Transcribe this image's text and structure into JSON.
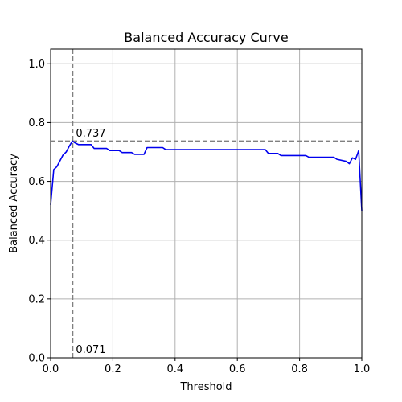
{
  "chart_data": {
    "type": "line",
    "title": "Balanced Accuracy Curve",
    "xlabel": "Threshold",
    "ylabel": "Balanced Accuracy",
    "xlim": [
      0.0,
      1.0
    ],
    "ylim": [
      0.0,
      1.05
    ],
    "grid": true,
    "x_ticks": [
      0.0,
      0.2,
      0.4,
      0.6,
      0.8,
      1.0
    ],
    "x_tick_labels": [
      "0.0",
      "0.2",
      "0.4",
      "0.6",
      "0.8",
      "1.0"
    ],
    "y_ticks": [
      0.0,
      0.2,
      0.4,
      0.6,
      0.8,
      1.0
    ],
    "y_tick_labels": [
      "0.0",
      "0.2",
      "0.4",
      "0.6",
      "0.8",
      "1.0"
    ],
    "series": [
      {
        "color": "#0000ee",
        "x": [
          0.0,
          0.01,
          0.02,
          0.03,
          0.04,
          0.05,
          0.06,
          0.07,
          0.08,
          0.09,
          0.1,
          0.11,
          0.12,
          0.13,
          0.14,
          0.16,
          0.18,
          0.19,
          0.22,
          0.23,
          0.26,
          0.27,
          0.3,
          0.31,
          0.36,
          0.37,
          0.69,
          0.7,
          0.73,
          0.74,
          0.82,
          0.83,
          0.91,
          0.92,
          0.95,
          0.96,
          0.97,
          0.98,
          0.99,
          1.0
        ],
        "y": [
          0.52,
          0.64,
          0.65,
          0.67,
          0.69,
          0.7,
          0.72,
          0.737,
          0.73,
          0.725,
          0.725,
          0.725,
          0.725,
          0.725,
          0.712,
          0.712,
          0.712,
          0.705,
          0.705,
          0.698,
          0.698,
          0.692,
          0.692,
          0.715,
          0.715,
          0.708,
          0.708,
          0.695,
          0.695,
          0.688,
          0.688,
          0.682,
          0.682,
          0.675,
          0.668,
          0.66,
          0.68,
          0.675,
          0.705,
          0.5
        ]
      }
    ],
    "reference_lines": [
      {
        "orientation": "horizontal",
        "value": 0.737,
        "color": "#808080",
        "style": "dashed"
      },
      {
        "orientation": "vertical",
        "value": 0.071,
        "color": "#808080",
        "style": "dashed"
      }
    ],
    "annotations": [
      {
        "text": "0.737",
        "x": 0.081,
        "y": 0.752
      },
      {
        "text": "0.071",
        "x": 0.081,
        "y": 0.016
      }
    ]
  }
}
